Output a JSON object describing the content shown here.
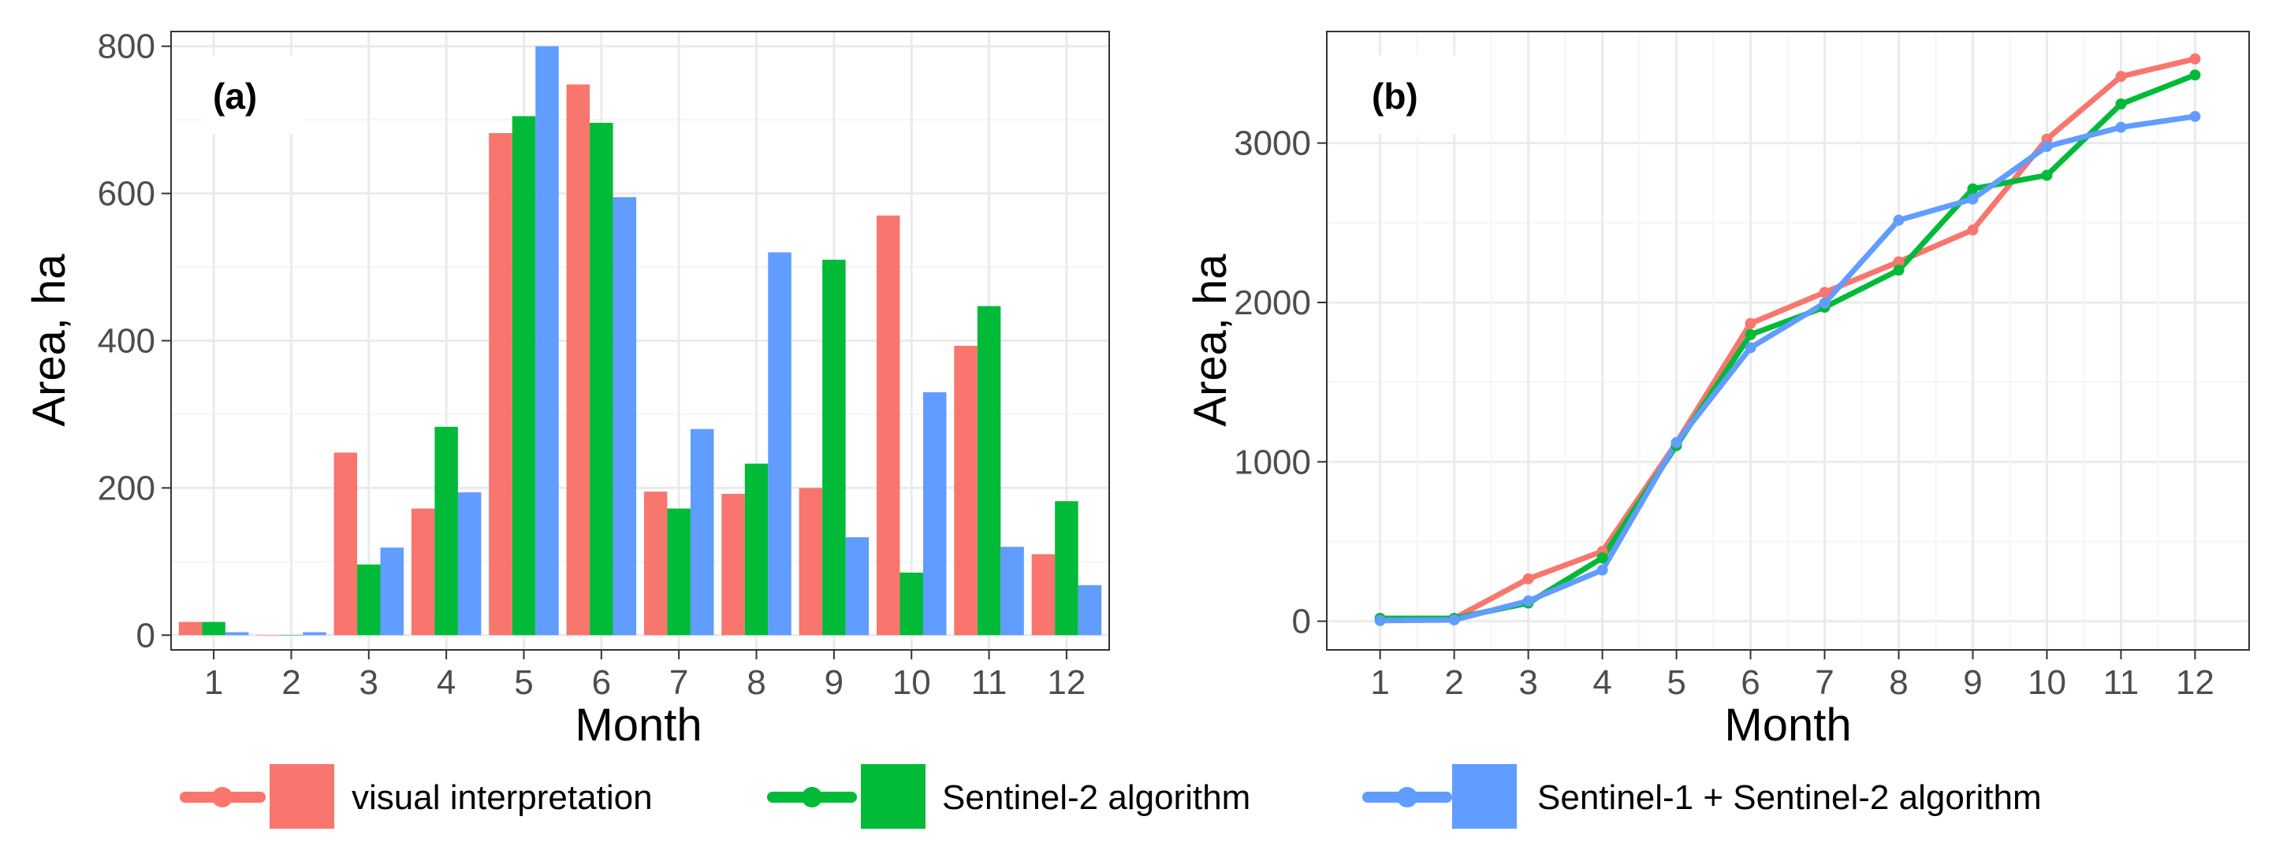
{
  "chart_data": [
    {
      "panel": "(a)",
      "type": "bar",
      "title": "",
      "xlabel": "Month",
      "ylabel": "Area, ha",
      "categories": [
        "1",
        "2",
        "3",
        "4",
        "5",
        "6",
        "7",
        "8",
        "9",
        "10",
        "11",
        "12"
      ],
      "ylim": [
        -20,
        820
      ],
      "yticks": [
        0,
        200,
        400,
        600,
        800
      ],
      "grid": true,
      "series": [
        {
          "name": "visual interpretation",
          "color": "#f8766d",
          "values": [
            18,
            0,
            248,
            172,
            682,
            748,
            195,
            192,
            200,
            570,
            393,
            110
          ]
        },
        {
          "name": "Sentinel-2 algorithm",
          "color": "#00ba38",
          "values": [
            18,
            0,
            96,
            283,
            705,
            696,
            172,
            233,
            510,
            85,
            447,
            182
          ]
        },
        {
          "name": "Sentinel-1 + Sentinel-2 algorithm",
          "color": "#619cff",
          "values": [
            4,
            4,
            119,
            194,
            800,
            595,
            280,
            520,
            133,
            330,
            120,
            68
          ]
        }
      ]
    },
    {
      "panel": "(b)",
      "type": "line",
      "title": "",
      "xlabel": "Month",
      "ylabel": "Area, ha",
      "x": [
        1,
        2,
        3,
        4,
        5,
        6,
        7,
        8,
        9,
        10,
        11,
        12
      ],
      "xticks": [
        "1",
        "2",
        "3",
        "4",
        "5",
        "6",
        "7",
        "8",
        "9",
        "10",
        "11",
        "12"
      ],
      "ylim": [
        -180,
        3700
      ],
      "yticks": [
        0,
        1000,
        2000,
        3000
      ],
      "grid": true,
      "series": [
        {
          "name": "visual interpretation",
          "color": "#f8766d",
          "values": [
            18,
            18,
            266,
            438,
            1120,
            1868,
            2063,
            2255,
            2455,
            3025,
            3418,
            3528
          ]
        },
        {
          "name": "Sentinel-2 algorithm",
          "color": "#00ba38",
          "values": [
            18,
            18,
            114,
            397,
            1102,
            1798,
            1970,
            2203,
            2713,
            2798,
            3245,
            3427
          ]
        },
        {
          "name": "Sentinel-1 + Sentinel-2 algorithm",
          "color": "#619cff",
          "values": [
            4,
            8,
            127,
            321,
            1121,
            1716,
            1996,
            2516,
            2649,
            2979,
            3099,
            3167
          ]
        }
      ]
    }
  ],
  "legend": {
    "items": [
      {
        "label": "visual interpretation",
        "color": "#f8766d"
      },
      {
        "label": "Sentinel-2 algorithm",
        "color": "#00ba38"
      },
      {
        "label": "Sentinel-1 + Sentinel-2 algorithm",
        "color": "#619cff"
      }
    ]
  },
  "colors": {
    "panel_border": "#333333",
    "grid_major": "#ebebeb",
    "grid_minor": "#f5f5f5",
    "tick_text": "#4d4d4d"
  }
}
